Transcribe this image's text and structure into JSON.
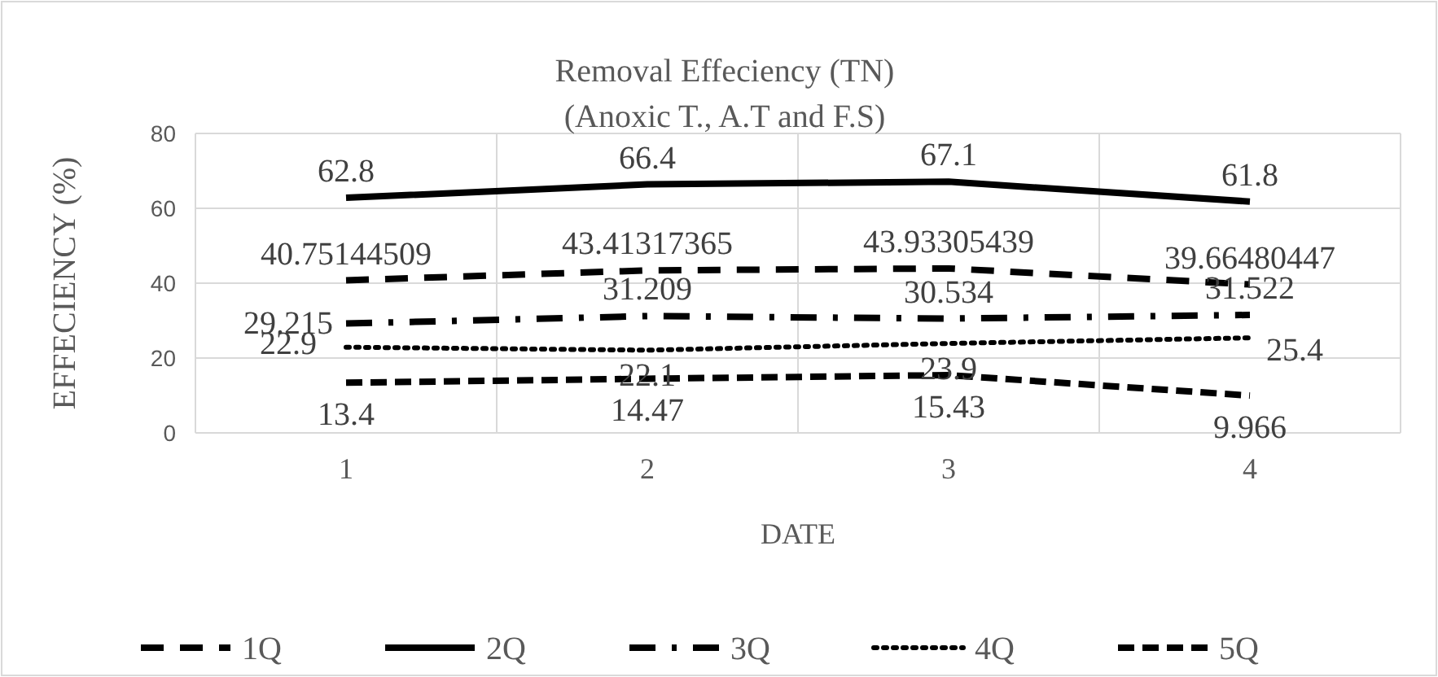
{
  "chart_data": {
    "type": "line",
    "title": "Removal Effeciency (TN)",
    "subtitle": "(Anoxic T., A.T and F.S)",
    "xlabel": "DATE",
    "ylabel": "EFFECIENCY (%)",
    "categories": [
      "1",
      "2",
      "3",
      "4"
    ],
    "ylim": [
      0,
      80
    ],
    "yticks": [
      0,
      20,
      40,
      60,
      80
    ],
    "grid": true,
    "legend": "bottom",
    "data_labels": true,
    "marker": "none",
    "series": [
      {
        "name": "1Q",
        "color": "#000000",
        "line_style": "dashed",
        "values": [
          40.75144509,
          43.41317365,
          43.93305439,
          39.66480447
        ]
      },
      {
        "name": "2Q",
        "color": "#000000",
        "line_style": "solid",
        "values": [
          62.8,
          66.4,
          67.1,
          61.8
        ]
      },
      {
        "name": "3Q",
        "color": "#000000",
        "line_style": "dashed",
        "values": [
          29.215,
          31.209,
          30.534,
          31.522
        ]
      },
      {
        "name": "4Q",
        "color": "#000000",
        "line_style": "dotted",
        "values": [
          22.9,
          22.1,
          23.9,
          25.4
        ]
      },
      {
        "name": "5Q",
        "color": "#000000",
        "line_style": "dashed",
        "values": [
          13.4,
          14.47,
          15.43,
          9.966
        ]
      }
    ]
  }
}
